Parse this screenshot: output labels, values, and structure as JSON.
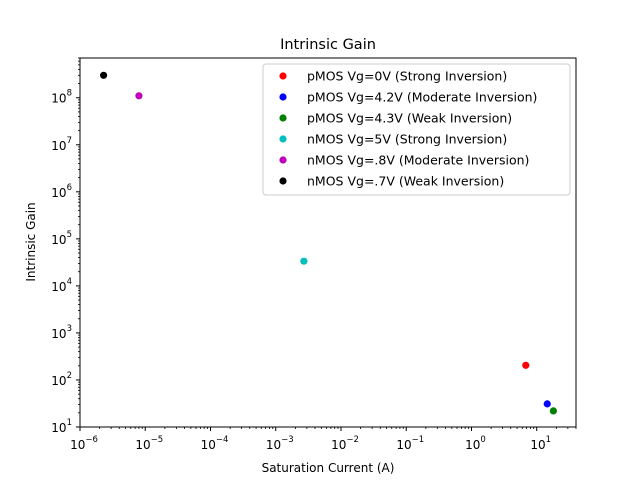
{
  "chart_data": {
    "type": "scatter",
    "title": "Intrinsic Gain",
    "xlabel": "Saturation Current (A)",
    "ylabel": "Intrinsic Gain",
    "xscale": "log",
    "yscale": "log",
    "xlim": [
      1e-06,
      40
    ],
    "ylim": [
      10,
      700000000
    ],
    "xticks": [
      {
        "value": 1e-06,
        "base": "10",
        "exp": "−6"
      },
      {
        "value": 1e-05,
        "base": "10",
        "exp": "−5"
      },
      {
        "value": 0.0001,
        "base": "10",
        "exp": "−4"
      },
      {
        "value": 0.001,
        "base": "10",
        "exp": "−3"
      },
      {
        "value": 0.01,
        "base": "10",
        "exp": "−2"
      },
      {
        "value": 0.1,
        "base": "10",
        "exp": "−1"
      },
      {
        "value": 1,
        "base": "10",
        "exp": "0"
      },
      {
        "value": 10,
        "base": "10",
        "exp": "1"
      }
    ],
    "yticks": [
      {
        "value": 10,
        "base": "10",
        "exp": "1"
      },
      {
        "value": 100,
        "base": "10",
        "exp": "2"
      },
      {
        "value": 1000,
        "base": "10",
        "exp": "3"
      },
      {
        "value": 10000,
        "base": "10",
        "exp": "4"
      },
      {
        "value": 100000,
        "base": "10",
        "exp": "5"
      },
      {
        "value": 1000000,
        "base": "10",
        "exp": "6"
      },
      {
        "value": 10000000,
        "base": "10",
        "exp": "7"
      },
      {
        "value": 100000000,
        "base": "10",
        "exp": "8"
      }
    ],
    "grid": false,
    "legend_position": "top-right",
    "series": [
      {
        "name": "pMOS Vg=0V (Strong Inversion)",
        "color": "#ff0000",
        "points": [
          {
            "x": 6.8,
            "y": 205
          }
        ]
      },
      {
        "name": "pMOS Vg=4.2V (Moderate Inversion)",
        "color": "#0000ff",
        "points": [
          {
            "x": 14.5,
            "y": 31
          }
        ]
      },
      {
        "name": "pMOS Vg=4.3V (Weak Inversion)",
        "color": "#008000",
        "points": [
          {
            "x": 18,
            "y": 22
          }
        ]
      },
      {
        "name": "nMOS Vg=5V (Strong Inversion)",
        "color": "#00bfbf",
        "points": [
          {
            "x": 0.0027,
            "y": 33500
          }
        ]
      },
      {
        "name": "nMOS Vg=.8V (Moderate Inversion)",
        "color": "#bf00bf",
        "points": [
          {
            "x": 8e-06,
            "y": 110000000
          }
        ]
      },
      {
        "name": "nMOS Vg=.7V (Weak Inversion)",
        "color": "#000000",
        "points": [
          {
            "x": 2.3e-06,
            "y": 300000000
          }
        ]
      }
    ]
  }
}
